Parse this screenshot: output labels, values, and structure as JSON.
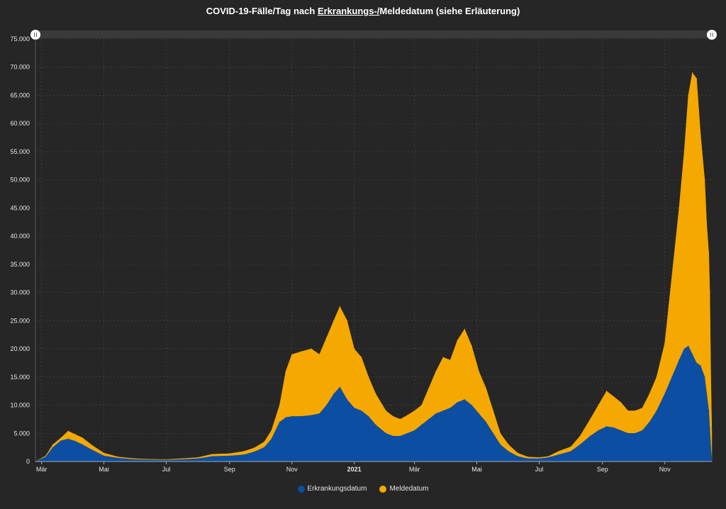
{
  "title": {
    "prefix": "COVID-19-Fälle/Tag nach ",
    "link": "Erkrankungs-/",
    "suffix": "Meldedatum (siehe Erläuterung)"
  },
  "colors": {
    "background": "#262626",
    "erkrankung": "#0b4ea2",
    "melde": "#f5a800",
    "grid": "#4a4a4a"
  },
  "chart_data": {
    "type": "area",
    "stacked": false,
    "title": "COVID-19-Fälle/Tag nach Erkrankungs-/Meldedatum (siehe Erläuterung)",
    "xlabel": "",
    "ylabel": "",
    "ylim": [
      0,
      75000
    ],
    "y_ticks": [
      "0",
      "5.000",
      "10.000",
      "15.000",
      "20.000",
      "25.000",
      "30.000",
      "35.000",
      "40.000",
      "45.000",
      "50.000",
      "55.000",
      "60.000",
      "65.000",
      "70.000",
      "75.000"
    ],
    "x_ticks": [
      {
        "label": "Mär",
        "date": "2020-03-01"
      },
      {
        "label": "Mai",
        "date": "2020-05-01"
      },
      {
        "label": "Jul",
        "date": "2020-07-01"
      },
      {
        "label": "Sep",
        "date": "2020-09-01"
      },
      {
        "label": "Nov",
        "date": "2020-11-01"
      },
      {
        "label": "2021",
        "date": "2021-01-01",
        "bold": true
      },
      {
        "label": "Mär",
        "date": "2021-03-01"
      },
      {
        "label": "Mai",
        "date": "2021-05-01"
      },
      {
        "label": "Jul",
        "date": "2021-07-01"
      },
      {
        "label": "Sep",
        "date": "2021-09-01"
      },
      {
        "label": "Nov",
        "date": "2021-11-01"
      }
    ],
    "x_range": [
      "2020-02-24",
      "2021-12-17"
    ],
    "grid": true,
    "legend_position": "bottom-center",
    "series": [
      {
        "name": "Meldedatum",
        "color": "#f5a800",
        "points": [
          [
            "2020-02-24",
            0
          ],
          [
            "2020-03-05",
            1000
          ],
          [
            "2020-03-12",
            3000
          ],
          [
            "2020-03-20",
            4200
          ],
          [
            "2020-03-27",
            5400
          ],
          [
            "2020-04-03",
            4800
          ],
          [
            "2020-04-10",
            4200
          ],
          [
            "2020-04-20",
            2800
          ],
          [
            "2020-05-01",
            1500
          ],
          [
            "2020-05-15",
            800
          ],
          [
            "2020-06-01",
            500
          ],
          [
            "2020-06-15",
            400
          ],
          [
            "2020-07-01",
            350
          ],
          [
            "2020-07-15",
            500
          ],
          [
            "2020-08-01",
            700
          ],
          [
            "2020-08-15",
            1300
          ],
          [
            "2020-09-01",
            1400
          ],
          [
            "2020-09-15",
            1800
          ],
          [
            "2020-09-25",
            2400
          ],
          [
            "2020-10-05",
            3500
          ],
          [
            "2020-10-12",
            5500
          ],
          [
            "2020-10-20",
            10000
          ],
          [
            "2020-10-26",
            16000
          ],
          [
            "2020-11-01",
            19000
          ],
          [
            "2020-11-10",
            19500
          ],
          [
            "2020-11-20",
            20000
          ],
          [
            "2020-11-28",
            19000
          ],
          [
            "2020-12-05",
            22000
          ],
          [
            "2020-12-12",
            25000
          ],
          [
            "2020-12-18",
            27500
          ],
          [
            "2020-12-25",
            25000
          ],
          [
            "2021-01-01",
            20000
          ],
          [
            "2021-01-08",
            18500
          ],
          [
            "2021-01-15",
            15000
          ],
          [
            "2021-01-22",
            12000
          ],
          [
            "2021-02-01",
            9000
          ],
          [
            "2021-02-08",
            8000
          ],
          [
            "2021-02-15",
            7500
          ],
          [
            "2021-02-22",
            8200
          ],
          [
            "2021-03-01",
            9000
          ],
          [
            "2021-03-08",
            10000
          ],
          [
            "2021-03-15",
            13000
          ],
          [
            "2021-03-22",
            16000
          ],
          [
            "2021-03-29",
            18500
          ],
          [
            "2021-04-05",
            18000
          ],
          [
            "2021-04-12",
            21500
          ],
          [
            "2021-04-19",
            23500
          ],
          [
            "2021-04-26",
            20500
          ],
          [
            "2021-05-03",
            16000
          ],
          [
            "2021-05-10",
            13000
          ],
          [
            "2021-05-17",
            9000
          ],
          [
            "2021-05-24",
            5000
          ],
          [
            "2021-06-01",
            3000
          ],
          [
            "2021-06-10",
            1500
          ],
          [
            "2021-06-20",
            800
          ],
          [
            "2021-07-01",
            700
          ],
          [
            "2021-07-10",
            900
          ],
          [
            "2021-07-20",
            1800
          ],
          [
            "2021-08-01",
            2600
          ],
          [
            "2021-08-10",
            4500
          ],
          [
            "2021-08-20",
            7500
          ],
          [
            "2021-08-28",
            10000
          ],
          [
            "2021-09-05",
            12500
          ],
          [
            "2021-09-12",
            11500
          ],
          [
            "2021-09-19",
            10500
          ],
          [
            "2021-09-26",
            9000
          ],
          [
            "2021-10-03",
            9000
          ],
          [
            "2021-10-10",
            9500
          ],
          [
            "2021-10-17",
            12000
          ],
          [
            "2021-10-24",
            15000
          ],
          [
            "2021-11-01",
            21000
          ],
          [
            "2021-11-08",
            33000
          ],
          [
            "2021-11-15",
            45000
          ],
          [
            "2021-11-20",
            55000
          ],
          [
            "2021-11-24",
            65000
          ],
          [
            "2021-11-28",
            69000
          ],
          [
            "2021-12-02",
            68000
          ],
          [
            "2021-12-06",
            58000
          ],
          [
            "2021-12-10",
            50000
          ],
          [
            "2021-12-12",
            42000
          ],
          [
            "2021-12-14",
            37000
          ],
          [
            "2021-12-15",
            30000
          ],
          [
            "2021-12-16",
            15000
          ],
          [
            "2021-12-17",
            5000
          ]
        ]
      },
      {
        "name": "Erkrankungsdatum",
        "color": "#0b4ea2",
        "points": [
          [
            "2020-02-24",
            0
          ],
          [
            "2020-03-05",
            800
          ],
          [
            "2020-03-12",
            2500
          ],
          [
            "2020-03-20",
            3700
          ],
          [
            "2020-03-27",
            4000
          ],
          [
            "2020-04-03",
            3600
          ],
          [
            "2020-04-10",
            3000
          ],
          [
            "2020-04-20",
            2000
          ],
          [
            "2020-05-01",
            1000
          ],
          [
            "2020-05-15",
            600
          ],
          [
            "2020-06-01",
            350
          ],
          [
            "2020-06-15",
            300
          ],
          [
            "2020-07-01",
            250
          ],
          [
            "2020-07-15",
            350
          ],
          [
            "2020-08-01",
            500
          ],
          [
            "2020-08-15",
            900
          ],
          [
            "2020-09-01",
            1000
          ],
          [
            "2020-09-15",
            1200
          ],
          [
            "2020-09-25",
            1700
          ],
          [
            "2020-10-05",
            2500
          ],
          [
            "2020-10-12",
            4000
          ],
          [
            "2020-10-20",
            7000
          ],
          [
            "2020-10-26",
            7800
          ],
          [
            "2020-11-01",
            8000
          ],
          [
            "2020-11-10",
            8000
          ],
          [
            "2020-11-20",
            8200
          ],
          [
            "2020-11-28",
            8500
          ],
          [
            "2020-12-05",
            10000
          ],
          [
            "2020-12-12",
            12000
          ],
          [
            "2020-12-18",
            13200
          ],
          [
            "2020-12-25",
            11000
          ],
          [
            "2021-01-01",
            9500
          ],
          [
            "2021-01-08",
            9000
          ],
          [
            "2021-01-15",
            8000
          ],
          [
            "2021-01-22",
            6500
          ],
          [
            "2021-02-01",
            5000
          ],
          [
            "2021-02-08",
            4500
          ],
          [
            "2021-02-15",
            4500
          ],
          [
            "2021-02-22",
            5000
          ],
          [
            "2021-03-01",
            5500
          ],
          [
            "2021-03-08",
            6500
          ],
          [
            "2021-03-15",
            7500
          ],
          [
            "2021-03-22",
            8500
          ],
          [
            "2021-03-29",
            9000
          ],
          [
            "2021-04-05",
            9500
          ],
          [
            "2021-04-12",
            10500
          ],
          [
            "2021-04-19",
            11000
          ],
          [
            "2021-04-26",
            10000
          ],
          [
            "2021-05-03",
            8500
          ],
          [
            "2021-05-10",
            7000
          ],
          [
            "2021-05-17",
            5000
          ],
          [
            "2021-05-24",
            3000
          ],
          [
            "2021-06-01",
            1800
          ],
          [
            "2021-06-10",
            900
          ],
          [
            "2021-06-20",
            500
          ],
          [
            "2021-07-01",
            500
          ],
          [
            "2021-07-10",
            700
          ],
          [
            "2021-07-20",
            1200
          ],
          [
            "2021-08-01",
            1800
          ],
          [
            "2021-08-10",
            3000
          ],
          [
            "2021-08-20",
            4500
          ],
          [
            "2021-08-28",
            5500
          ],
          [
            "2021-09-05",
            6200
          ],
          [
            "2021-09-12",
            6000
          ],
          [
            "2021-09-19",
            5500
          ],
          [
            "2021-09-26",
            5000
          ],
          [
            "2021-10-03",
            5000
          ],
          [
            "2021-10-10",
            5500
          ],
          [
            "2021-10-17",
            7000
          ],
          [
            "2021-10-24",
            9000
          ],
          [
            "2021-11-01",
            12000
          ],
          [
            "2021-11-08",
            15000
          ],
          [
            "2021-11-15",
            18000
          ],
          [
            "2021-11-20",
            20000
          ],
          [
            "2021-11-24",
            20500
          ],
          [
            "2021-11-28",
            19000
          ],
          [
            "2021-12-02",
            17500
          ],
          [
            "2021-12-06",
            17000
          ],
          [
            "2021-12-10",
            15000
          ],
          [
            "2021-12-12",
            12000
          ],
          [
            "2021-12-14",
            9000
          ],
          [
            "2021-12-15",
            6000
          ],
          [
            "2021-12-16",
            2500
          ],
          [
            "2021-12-17",
            500
          ]
        ]
      }
    ]
  },
  "legend": {
    "items": [
      {
        "label": "Erkrankungsdatum",
        "color": "#0b4ea2"
      },
      {
        "label": "Meldedatum",
        "color": "#f5a800"
      }
    ]
  }
}
